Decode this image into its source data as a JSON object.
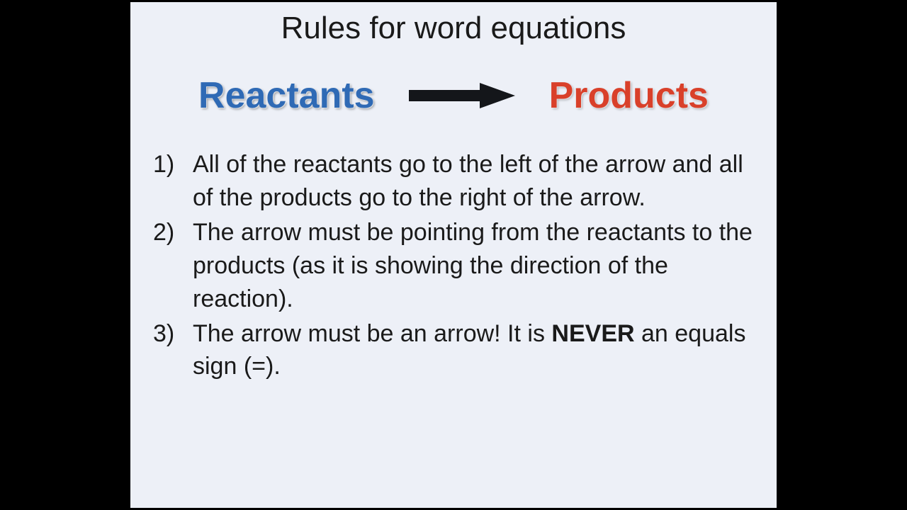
{
  "slide": {
    "background_color": "#edf0f7",
    "outer_background": "#000000",
    "font_family": "Comic Sans MS",
    "title": "Rules for word equations",
    "title_fontsize": 44,
    "equation": {
      "left_label": "Reactants",
      "left_color": "#2f6ab5",
      "right_label": "Products",
      "right_color": "#d9402a",
      "word_fontsize": 52,
      "arrow_color": "#14161a",
      "arrow_width": 150,
      "arrow_height": 36
    },
    "rules_fontsize": 34,
    "rules": [
      {
        "num": "1)",
        "text": "All of the reactants go to the left of the arrow and all of the products go to the right of the arrow."
      },
      {
        "num": "2)",
        "text": "The arrow must be pointing from the reactants to the products (as it is showing the direction of the reaction)."
      },
      {
        "num": "3)",
        "pre": "The arrow must be an arrow! It is ",
        "bold": "NEVER",
        "post": " an equals sign (=)."
      }
    ]
  }
}
